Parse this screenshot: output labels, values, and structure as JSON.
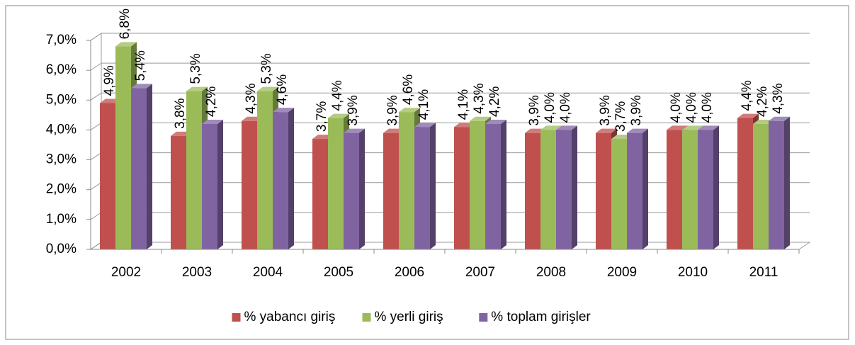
{
  "chart_data": {
    "type": "bar",
    "categories": [
      "2002",
      "2003",
      "2004",
      "2005",
      "2006",
      "2007",
      "2008",
      "2009",
      "2010",
      "2011"
    ],
    "series": [
      {
        "name": "% yabancı giriş",
        "color": "#c0504d",
        "values": [
          4.9,
          3.8,
          4.3,
          3.7,
          3.9,
          4.1,
          3.9,
          3.9,
          4.0,
          4.4
        ],
        "value_labels": [
          "4,9%",
          "3,8%",
          "4,3%",
          "3,7%",
          "3,9%",
          "4,1%",
          "3,9%",
          "3,9%",
          "4,0%",
          "4,4%"
        ]
      },
      {
        "name": "% yerli giriş",
        "color": "#9bbb59",
        "values": [
          6.8,
          5.3,
          5.3,
          4.4,
          4.6,
          4.3,
          4.0,
          3.7,
          4.0,
          4.2
        ],
        "value_labels": [
          "6,8%",
          "5,3%",
          "5,3%",
          "4,4%",
          "4,6%",
          "4,3%",
          "4,0%",
          "3,7%",
          "4,0%",
          "4,2%"
        ]
      },
      {
        "name": "% toplam girişler",
        "color": "#8064a2",
        "values": [
          5.4,
          4.2,
          4.6,
          3.9,
          4.1,
          4.2,
          4.0,
          3.9,
          4.0,
          4.3
        ],
        "value_labels": [
          "5,4%",
          "4,2%",
          "4,6%",
          "3,9%",
          "4,1%",
          "4,2%",
          "4,0%",
          "3,9%",
          "4,0%",
          "4,3%"
        ]
      }
    ],
    "ylim": [
      0,
      7
    ],
    "yticks": [
      {
        "value": 0,
        "label": "0,0%"
      },
      {
        "value": 1,
        "label": "1,0%"
      },
      {
        "value": 2,
        "label": "2,0%"
      },
      {
        "value": 3,
        "label": "3,0%"
      },
      {
        "value": 4,
        "label": "4,0%"
      },
      {
        "value": 5,
        "label": "5,0%"
      },
      {
        "value": 6,
        "label": "6,0%"
      },
      {
        "value": 7,
        "label": "7,0%"
      }
    ],
    "grid": true,
    "legend": "bottom"
  }
}
